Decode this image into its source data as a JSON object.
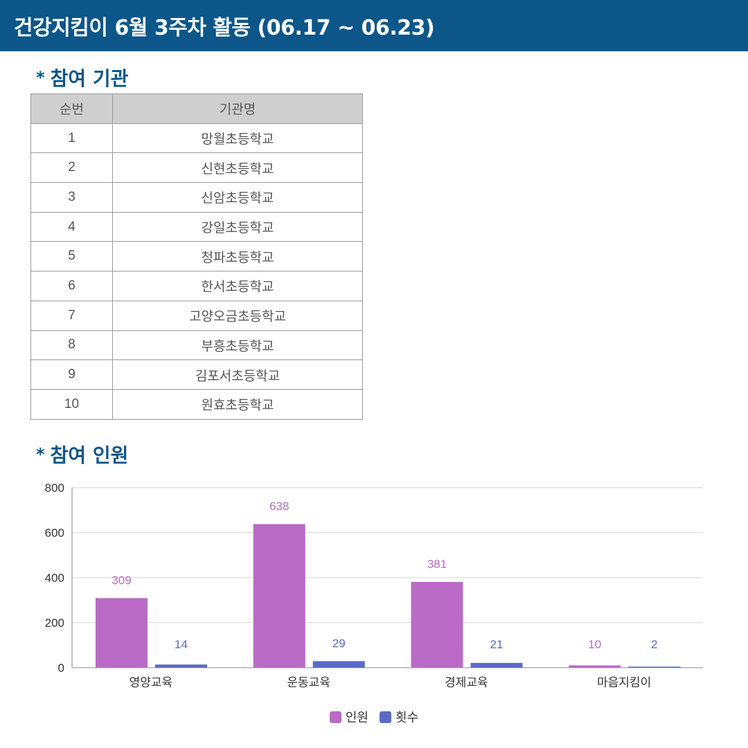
{
  "header": {
    "title": "건강지킴이 6월 3주차 활동 (06.17 ~ 06.23)"
  },
  "sections": {
    "institutions": {
      "bullet": "*",
      "title": "참여 기관"
    },
    "participants": {
      "bullet": "*",
      "title": "참여 인원"
    }
  },
  "table": {
    "headers": [
      "순번",
      "기관명"
    ],
    "rows": [
      [
        "1",
        "망월초등학교"
      ],
      [
        "2",
        "신현초등학교"
      ],
      [
        "3",
        "신암초등학교"
      ],
      [
        "4",
        "강일초등학교"
      ],
      [
        "5",
        "청파초등학교"
      ],
      [
        "6",
        "한서초등학교"
      ],
      [
        "7",
        "고양오금초등학교"
      ],
      [
        "8",
        "부흥초등학교"
      ],
      [
        "9",
        "김포서초등학교"
      ],
      [
        "10",
        "원효초등학교"
      ]
    ]
  },
  "chart_data": {
    "type": "bar",
    "categories": [
      "영양교육",
      "운동교육",
      "경제교육",
      "마음지킴이"
    ],
    "series": [
      {
        "name": "인원",
        "color": "#b96bc6",
        "values": [
          309,
          638,
          381,
          10
        ]
      },
      {
        "name": "횟수",
        "color": "#5b6bc4",
        "values": [
          14,
          29,
          21,
          2
        ]
      }
    ],
    "ylim": [
      0,
      800
    ],
    "yticks": [
      "0",
      "200",
      "400",
      "600",
      "800"
    ],
    "grid": true,
    "legend": "bottom-center",
    "data_labels": true
  }
}
